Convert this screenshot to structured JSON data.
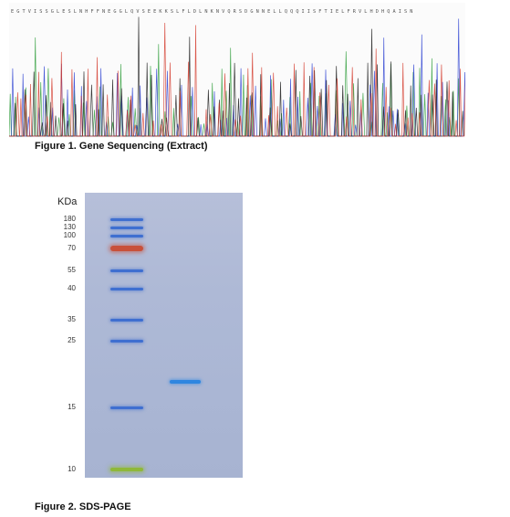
{
  "figure1": {
    "caption": "Figure 1. Gene Sequencing (Extract)",
    "trace_colors": [
      "#2f9e3b",
      "#2a3fd1",
      "#1a1a1a",
      "#d33a2c"
    ],
    "sequence_text": "E G T V I S S G L E S L N H F F N E G G L Q V S E E K K S L F L D L N K N V Q R S D G N N E L L Q Q Q I I S F T I E L F R V L H D H Q A I S N"
  },
  "figure2": {
    "caption": "Figure 2. SDS-PAGE",
    "unit_label": "KDa",
    "markers": [
      "180",
      "130",
      "100",
      "70",
      "55",
      "40",
      "35",
      "25",
      "15",
      "10"
    ],
    "marker_band_color": "#3f6fd0",
    "marker_70_color": "#c8503a",
    "marker_10_color": "#8fb83a",
    "sample_band_color": "#2f86e0"
  }
}
